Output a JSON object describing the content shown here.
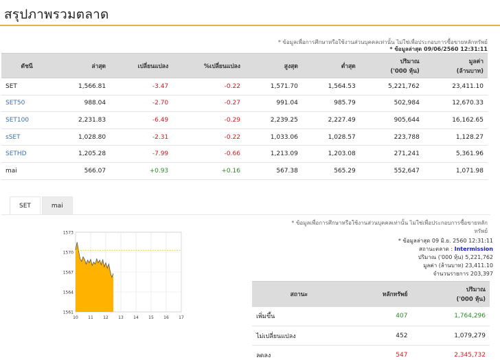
{
  "page": {
    "title": "สรุปภาพรวมตลาด"
  },
  "notes": {
    "disclaimer1": "* ข้อมูลเพื่อการศึกษาหรือใช้งานส่วนบุคคลเท่านั้น ไม่ใช่เพื่อประกอบการซื้อขายหลักทรัพย์",
    "update_time1": "* ข้อมูลล่าสุด 09/06/2560 12:31:11",
    "disclaimer2a": "* ข้อมูลเพื่อการศึกษาหรือใช้งานส่วนบุคคลเท่านั้น ไม่ใช่เพื่อประกอบการซื้อขายหลัก",
    "disclaimer2b": "ทรัพย์"
  },
  "index_table": {
    "headers": [
      "ดัชนี",
      "ล่าสุด",
      "เปลี่ยนแปลง",
      "%เปลี่ยนแปลง",
      "สูงสุด",
      "ต่ำสุด",
      "ปริมาณ",
      "('000 หุ้น)",
      "มูลค่า",
      "(ล้านบาท)"
    ],
    "rows": [
      {
        "name": "SET",
        "last": "1,566.81",
        "change": "-3.47",
        "pct": "-0.22",
        "high": "1,571.70",
        "low": "1,564.53",
        "volume": "5,221,762",
        "value": "23,411.10"
      },
      {
        "name": "SET50",
        "last": "988.04",
        "change": "-2.70",
        "pct": "-0.27",
        "high": "991.04",
        "low": "985.79",
        "volume": "502,984",
        "value": "12,670.33"
      },
      {
        "name": "SET100",
        "last": "2,231.83",
        "change": "-6.49",
        "pct": "-0.29",
        "high": "2,239.25",
        "low": "2,227.49",
        "volume": "905,644",
        "value": "16,162.65"
      },
      {
        "name": "sSET",
        "last": "1,028.80",
        "change": "-2.31",
        "pct": "-0.22",
        "high": "1,033.06",
        "low": "1,028.57",
        "volume": "223,788",
        "value": "1,128.27"
      },
      {
        "name": "SETHD",
        "last": "1,205.28",
        "change": "-7.99",
        "pct": "-0.66",
        "high": "1,213.09",
        "low": "1,203.08",
        "volume": "271,241",
        "value": "5,361.96"
      },
      {
        "name": "mai",
        "last": "566.07",
        "change": "+0.93",
        "pct": "+0.16",
        "high": "567.38",
        "low": "565.29",
        "volume": "552,647",
        "value": "1,071.98"
      }
    ]
  },
  "tabs": [
    {
      "label": "SET",
      "active": true
    },
    {
      "label": "mai",
      "active": false
    }
  ],
  "chart_data": {
    "type": "area",
    "y_ticks": [
      "1573",
      "1570",
      "1567",
      "1564",
      "1561"
    ],
    "x_ticks": [
      "10",
      "11",
      "12",
      "13",
      "14",
      "15",
      "16",
      "17"
    ],
    "ylim": [
      1561,
      1573
    ],
    "xlim": [
      10,
      17
    ],
    "reference_line": 1570.28,
    "x": [
      10.0,
      10.1,
      10.2,
      10.3,
      10.4,
      10.5,
      10.6,
      10.7,
      10.8,
      10.9,
      11.0,
      11.1,
      11.2,
      11.3,
      11.4,
      11.5,
      11.6,
      11.7,
      11.8,
      11.9,
      12.0,
      12.1,
      12.2,
      12.3,
      12.4,
      12.5
    ],
    "values": [
      1570.3,
      1571.5,
      1570.2,
      1569.0,
      1568.6,
      1569.3,
      1568.9,
      1568.2,
      1568.8,
      1568.4,
      1568.9,
      1568.0,
      1568.5,
      1568.2,
      1569.0,
      1568.4,
      1568.8,
      1568.1,
      1568.9,
      1567.8,
      1568.4,
      1567.6,
      1568.2,
      1567.0,
      1566.2,
      1566.8
    ],
    "fill_color": "#ffb300",
    "line_color": "#555555",
    "reference_color": "#f0c040"
  },
  "market_info": {
    "update_time": "* ข้อมูลล่าสุด 09 มิ.ย. 2560 12:31:11",
    "status_label": "สถานะตลาด :",
    "status_value": "Intermission",
    "volume_label": "ปริมาณ ('000 หุ้น)",
    "volume_value": "5,221,762",
    "value_label": "มูลค่า (ล้านบาท)",
    "value_value": "23,411.10",
    "deals_label": "จำนวนรายการ",
    "deals_value": "203,397"
  },
  "summary_table": {
    "headers": [
      "สถานะ",
      "หลักทรัพย์",
      "ปริมาณ",
      "('000 หุ้น)"
    ],
    "rows": [
      {
        "status": "เพิ่มขึ้น",
        "count": "407",
        "volume": "1,764,296"
      },
      {
        "status": "ไม่เปลี่ยนแปลง",
        "count": "452",
        "volume": "1,079,279"
      },
      {
        "status": "ลดลง",
        "count": "547",
        "volume": "2,345,732"
      }
    ]
  }
}
